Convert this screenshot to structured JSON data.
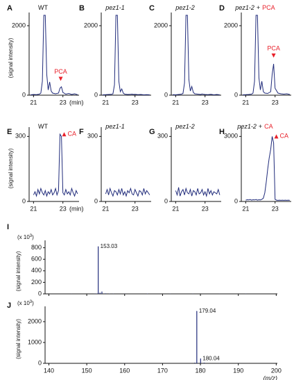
{
  "chart_data": [
    {
      "type": "line",
      "panel": "A",
      "title": "WT",
      "title_italic": false,
      "ylabel": "(signal intensity)",
      "xlabel": "(min)",
      "color": "#1f2a7a",
      "annotation_color": "#e8202a",
      "x": [
        20.8,
        21.0,
        21.2,
        21.4,
        21.5,
        21.6,
        21.7,
        21.8,
        21.9,
        22.0,
        22.1,
        22.2,
        22.3,
        22.5,
        22.7,
        22.8,
        22.9,
        23.0,
        23.2,
        23.4,
        23.6,
        23.8,
        24.0
      ],
      "values": [
        10,
        20,
        15,
        30,
        60,
        400,
        2300,
        2300,
        600,
        150,
        380,
        120,
        60,
        40,
        60,
        200,
        240,
        80,
        30,
        50,
        20,
        40,
        15
      ],
      "xlim": [
        20.7,
        24.1
      ],
      "ylim": [
        0,
        2300
      ],
      "xticks": [
        21,
        23
      ],
      "yticks": [
        0,
        2000
      ],
      "annotations": [
        {
          "text": "PCA",
          "x": 22.85,
          "y": 330,
          "marker": "down"
        }
      ]
    },
    {
      "type": "line",
      "panel": "B",
      "title": "pez1-1",
      "title_italic": true,
      "color": "#1f2a7a",
      "x": [
        20.8,
        21.0,
        21.2,
        21.4,
        21.5,
        21.6,
        21.7,
        21.8,
        21.9,
        22.0,
        22.1,
        22.2,
        22.3,
        22.5,
        22.7,
        22.8,
        22.9,
        23.0,
        23.2,
        23.4,
        23.6,
        23.8,
        24.0
      ],
      "values": [
        10,
        15,
        20,
        25,
        40,
        300,
        2300,
        2300,
        400,
        100,
        180,
        60,
        30,
        20,
        25,
        30,
        20,
        25,
        15,
        20,
        10,
        15,
        10
      ],
      "xlim": [
        20.7,
        24.1
      ],
      "ylim": [
        0,
        2300
      ],
      "xticks": [
        21,
        23
      ],
      "yticks": [
        0,
        2000
      ]
    },
    {
      "type": "line",
      "panel": "C",
      "title": "pez1-2",
      "title_italic": true,
      "color": "#1f2a7a",
      "x": [
        20.8,
        21.0,
        21.2,
        21.4,
        21.5,
        21.6,
        21.7,
        21.8,
        21.9,
        22.0,
        22.1,
        22.2,
        22.3,
        22.5,
        22.7,
        22.8,
        22.9,
        23.0,
        23.2,
        23.4,
        23.6,
        23.8,
        24.0
      ],
      "values": [
        15,
        10,
        20,
        30,
        50,
        350,
        2300,
        2300,
        450,
        120,
        250,
        80,
        40,
        30,
        20,
        35,
        25,
        20,
        15,
        25,
        10,
        20,
        10
      ],
      "xlim": [
        20.7,
        24.1
      ],
      "ylim": [
        0,
        2300
      ],
      "xticks": [
        21,
        23
      ],
      "yticks": [
        0,
        2000
      ]
    },
    {
      "type": "line",
      "panel": "D",
      "title": "pez1-2",
      "title_joiner": "+",
      "title_treatment": "PCA",
      "title_italic": true,
      "color": "#1f2a7a",
      "annotation_color": "#e8202a",
      "x": [
        20.8,
        21.0,
        21.2,
        21.4,
        21.5,
        21.6,
        21.7,
        21.8,
        21.9,
        22.0,
        22.1,
        22.2,
        22.3,
        22.5,
        22.7,
        22.8,
        22.9,
        23.0,
        23.2,
        23.4,
        23.6,
        23.8,
        24.0
      ],
      "values": [
        10,
        15,
        20,
        30,
        60,
        400,
        2300,
        2300,
        500,
        150,
        400,
        100,
        60,
        50,
        100,
        600,
        900,
        200,
        60,
        40,
        30,
        40,
        20
      ],
      "xlim": [
        20.7,
        24.1
      ],
      "ylim": [
        0,
        2300
      ],
      "xticks": [
        21,
        23
      ],
      "yticks": [
        0,
        2000
      ],
      "annotations": [
        {
          "text": "PCA",
          "x": 22.9,
          "y": 1000,
          "marker": "down"
        }
      ]
    },
    {
      "type": "line",
      "panel": "E",
      "title": "WT",
      "title_italic": false,
      "ylabel": "(signal intensity)",
      "xlabel": "(min)",
      "color": "#1f2a7a",
      "annotation_color": "#e8202a",
      "x": [
        21.0,
        21.1,
        21.2,
        21.3,
        21.4,
        21.5,
        21.6,
        21.7,
        21.8,
        21.9,
        22.0,
        22.1,
        22.2,
        22.3,
        22.4,
        22.5,
        22.6,
        22.7,
        22.8,
        22.9,
        23.0,
        23.1,
        23.2,
        23.3,
        23.4,
        23.5,
        23.6,
        23.7,
        23.8,
        23.9,
        24.0
      ],
      "values": [
        30,
        45,
        25,
        55,
        35,
        60,
        40,
        30,
        50,
        25,
        45,
        35,
        55,
        30,
        40,
        60,
        30,
        50,
        310,
        300,
        40,
        30,
        55,
        35,
        45,
        30,
        60,
        40,
        25,
        50,
        35
      ],
      "xlim": [
        20.7,
        24.1
      ],
      "ylim": [
        0,
        330
      ],
      "xticks": [
        21,
        23
      ],
      "yticks": [
        0,
        300
      ],
      "annotations": [
        {
          "text": "CA",
          "x": 22.85,
          "y": 310,
          "marker": "up"
        }
      ]
    },
    {
      "type": "line",
      "panel": "F",
      "title": "pez1-1",
      "title_italic": true,
      "color": "#1f2a7a",
      "x": [
        21.0,
        21.1,
        21.2,
        21.3,
        21.4,
        21.5,
        21.6,
        21.7,
        21.8,
        21.9,
        22.0,
        22.1,
        22.2,
        22.3,
        22.4,
        22.5,
        22.6,
        22.7,
        22.8,
        22.9,
        23.0,
        23.1,
        23.2,
        23.3,
        23.4,
        23.5,
        23.6,
        23.7,
        23.8,
        23.9,
        24.0
      ],
      "values": [
        35,
        55,
        30,
        60,
        40,
        25,
        50,
        45,
        30,
        55,
        35,
        60,
        30,
        45,
        25,
        50,
        40,
        60,
        35,
        30,
        55,
        40,
        25,
        50,
        45,
        30,
        60,
        35,
        50,
        40,
        30
      ],
      "xlim": [
        20.7,
        24.1
      ],
      "ylim": [
        0,
        330
      ],
      "xticks": [
        21,
        23
      ],
      "yticks": [
        0,
        300
      ]
    },
    {
      "type": "line",
      "panel": "G",
      "title": "pez1-2",
      "title_italic": true,
      "color": "#1f2a7a",
      "x": [
        21.0,
        21.1,
        21.2,
        21.3,
        21.4,
        21.5,
        21.6,
        21.7,
        21.8,
        21.9,
        22.0,
        22.1,
        22.2,
        22.3,
        22.4,
        22.5,
        22.6,
        22.7,
        22.8,
        22.9,
        23.0,
        23.1,
        23.2,
        23.3,
        23.4,
        23.5,
        23.6,
        23.7,
        23.8,
        23.9,
        24.0
      ],
      "values": [
        50,
        30,
        65,
        25,
        45,
        55,
        30,
        60,
        40,
        35,
        55,
        25,
        50,
        45,
        30,
        60,
        35,
        40,
        55,
        30,
        45,
        25,
        60,
        35,
        50,
        30,
        45,
        40,
        35,
        55,
        30
      ],
      "xlim": [
        20.7,
        24.1
      ],
      "ylim": [
        0,
        330
      ],
      "xticks": [
        21,
        23
      ],
      "yticks": [
        0,
        300
      ]
    },
    {
      "type": "line",
      "panel": "H",
      "title": "pez1-2",
      "title_joiner": "+",
      "title_treatment": "CA",
      "title_italic": true,
      "color": "#1f2a7a",
      "annotation_color": "#e8202a",
      "x": [
        21.0,
        21.1,
        21.2,
        21.3,
        21.4,
        21.5,
        21.6,
        21.7,
        21.8,
        21.9,
        22.0,
        22.1,
        22.2,
        22.3,
        22.4,
        22.5,
        22.6,
        22.7,
        22.8,
        22.9,
        23.0,
        23.1,
        23.2,
        23.3,
        23.4,
        23.5,
        23.6,
        23.7,
        23.8,
        23.9,
        24.0
      ],
      "values": [
        60,
        80,
        70,
        90,
        60,
        80,
        70,
        90,
        60,
        80,
        70,
        100,
        150,
        400,
        900,
        1500,
        2000,
        2400,
        3000,
        2700,
        100,
        60,
        50,
        60,
        50,
        60,
        50,
        60,
        50,
        60,
        50
      ],
      "xlim": [
        20.7,
        24.1
      ],
      "ylim": [
        0,
        3300
      ],
      "xticks": [
        21,
        23
      ],
      "yticks": [
        0,
        3000
      ],
      "annotations": [
        {
          "text": "CA",
          "x": 22.85,
          "y": 3000,
          "marker": "up"
        }
      ]
    },
    {
      "type": "stick",
      "panel": "I",
      "ylabel": "(signal intensity)",
      "yunit_parts": [
        "(x 10",
        "3",
        ")"
      ],
      "color": "#1f2a7a",
      "annotation_color": "#111111",
      "show_xtick_labels": false,
      "x": [
        146,
        152,
        152.5,
        153.03,
        153.5,
        154,
        155,
        156,
        157,
        160,
        166,
        172,
        178,
        185,
        192
      ],
      "values": [
        2,
        3,
        5,
        820,
        20,
        40,
        8,
        5,
        3,
        2,
        5,
        3,
        3,
        2,
        3
      ],
      "xlim": [
        139,
        200.3
      ],
      "ylim": [
        0,
        880
      ],
      "xticks": [
        140,
        150,
        160,
        170,
        180,
        190,
        200
      ],
      "yticks": [
        0,
        200,
        400,
        600,
        800
      ],
      "annotations": [
        {
          "text": "153.03",
          "x": 153.03,
          "y": 820,
          "marker": "none"
        }
      ]
    },
    {
      "type": "stick",
      "panel": "J",
      "ylabel": "(signal intensity)",
      "yunit_parts": [
        "(x 10",
        "3",
        ")"
      ],
      "xlabel": "(m/z)",
      "color": "#1f2a7a",
      "annotation_color": "#111111",
      "show_xtick_labels": true,
      "x": [
        152,
        160,
        170,
        177.5,
        178.5,
        179.04,
        180.04,
        181,
        185,
        190,
        195
      ],
      "values": [
        2,
        3,
        2,
        5,
        30,
        2500,
        220,
        30,
        5,
        3,
        2
      ],
      "xlim": [
        139,
        200.3
      ],
      "ylim": [
        0,
        2600
      ],
      "xticks": [
        140,
        150,
        160,
        170,
        180,
        190,
        200
      ],
      "yticks": [
        0,
        1000,
        2000
      ],
      "annotations": [
        {
          "text": "179.04",
          "x": 179.04,
          "y": 2500,
          "marker": "none"
        },
        {
          "text": "180.04",
          "x": 180.04,
          "y": 220,
          "marker": "none"
        }
      ]
    }
  ]
}
